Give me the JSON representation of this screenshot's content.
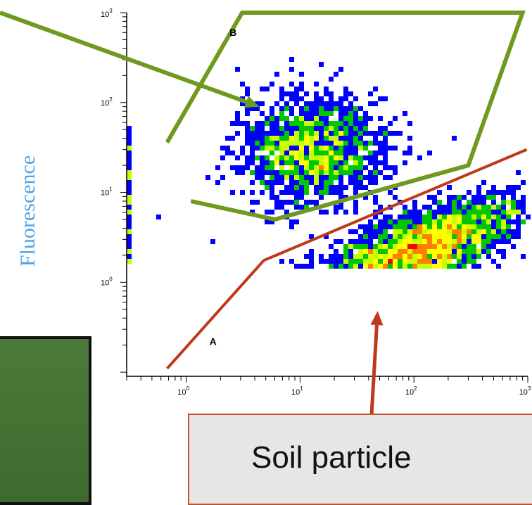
{
  "chart_data": {
    "type": "scatter",
    "subtype": "flow-cytometry-density-plot",
    "ylabel": "Fluorescence",
    "xlabel": "",
    "x_scale": "log",
    "y_scale": "log",
    "xlim": [
      0.3,
      1000
    ],
    "ylim": [
      0.09,
      1000
    ],
    "x_ticks": [
      {
        "value": 1,
        "base": "10",
        "exp": "0"
      },
      {
        "value": 10,
        "base": "10",
        "exp": "1"
      },
      {
        "value": 100,
        "base": "10",
        "exp": "2"
      },
      {
        "value": 1000,
        "base": "10",
        "exp": "3"
      }
    ],
    "y_ticks": [
      {
        "value": 1,
        "base": "10",
        "exp": "0"
      },
      {
        "value": 10,
        "base": "10",
        "exp": "1"
      },
      {
        "value": 100,
        "base": "10",
        "exp": "2"
      },
      {
        "value": 1000,
        "base": "10",
        "exp": "3"
      }
    ],
    "density_colors": [
      "#0000ff",
      "#00c800",
      "#c8ff00",
      "#ffff00",
      "#ff8000",
      "#ff0000"
    ],
    "populations": [
      {
        "label": "B",
        "center": [
          13,
          30
        ],
        "spread": [
          0.32,
          0.3
        ],
        "peak": 4
      },
      {
        "label": "Soil particle",
        "center": [
          110,
          2.3
        ],
        "spread": [
          0.45,
          0.2
        ],
        "peak": 6
      }
    ],
    "regions": [
      {
        "label": "B",
        "color": "#6e9a1e",
        "polygon": [
          [
            0.68,
            36
          ],
          [
            3.1,
            1000
          ],
          [
            900,
            1000
          ],
          [
            300,
            20
          ],
          [
            6,
            5
          ],
          [
            1.1,
            8
          ]
        ]
      },
      {
        "label": "A",
        "color": "#c0391b",
        "polygon": [
          [
            0.68,
            0.11
          ],
          [
            4.8,
            1.75
          ],
          [
            980,
            30
          ]
        ]
      }
    ],
    "region_labels": [
      {
        "text": "B",
        "x": 2.4,
        "y": 550
      },
      {
        "text": "A",
        "x": 1.6,
        "y": 0.2
      }
    ],
    "annotations": [
      {
        "text": "Soil particle",
        "color": "#c0391b",
        "arrow_to": [
          48,
          0.48
        ]
      }
    ],
    "green_arrow": {
      "color": "#6e9a1e",
      "arrow_to": [
        4.4,
        90
      ]
    }
  }
}
